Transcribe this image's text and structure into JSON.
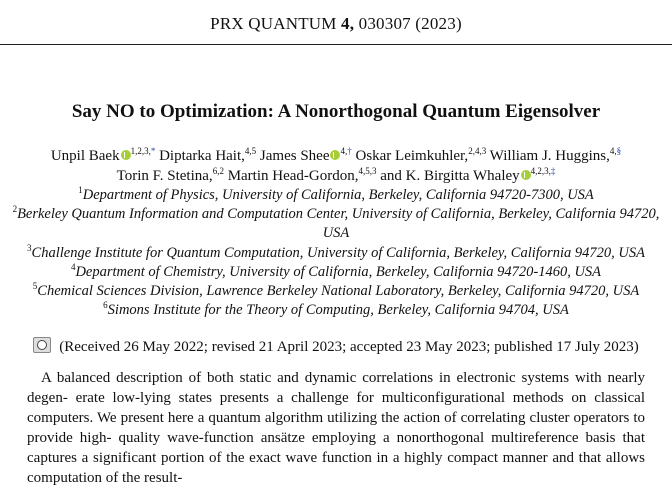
{
  "journal": {
    "name": "PRX QUANTUM",
    "volume": "4,",
    "article_number": "030307",
    "year": "(2023)"
  },
  "title": "Say NO to Optimization: A Nonorthogonal Quantum Eigensolver",
  "authors": [
    {
      "name": "Unpil Baek",
      "sup": "1,2,3,",
      "mark": "*"
    },
    {
      "name": "Diptarka Hait,",
      "sup": "4,5"
    },
    {
      "name": "James Shee",
      "sup": "4,",
      "mark": "†"
    },
    {
      "name": "Oskar Leimkuhler,",
      "sup": "2,4,3"
    },
    {
      "name": "William J. Huggins,",
      "sup": "4,",
      "mark": "§"
    },
    {
      "name": "Torin F. Stetina,",
      "sup": "6,2"
    },
    {
      "name": "Martin Head-Gordon,",
      "sup": "4,5,3"
    },
    {
      "name": "and K. Birgitta Whaley",
      "sup": "4,2,3,",
      "mark": "‡"
    }
  ],
  "affiliations": [
    {
      "num": "1",
      "text": "Department of Physics, University of California, Berkeley, California 94720-7300, USA"
    },
    {
      "num": "2",
      "text": "Berkeley Quantum Information and Computation Center, University of California, Berkeley, California 94720,",
      "cont": "USA"
    },
    {
      "num": "3",
      "text": "Challenge Institute for Quantum Computation, University of California, Berkeley, California 94720, USA"
    },
    {
      "num": "4",
      "text": "Department of Chemistry, University of California, Berkeley, California 94720-1460, USA"
    },
    {
      "num": "5",
      "text": "Chemical Sciences Division, Lawrence Berkeley National Laboratory, Berkeley, California 94720, USA"
    },
    {
      "num": "6",
      "text": "Simons Institute for the Theory of Computing, Berkeley, California 94704, USA"
    }
  ],
  "received": "(Received 26 May 2022; revised 21 April 2023; accepted 23 May 2023; published 17 July 2023)",
  "abstract_lines": [
    "A balanced description of both static and dynamic correlations in electronic systems with nearly degen-",
    "erate low-lying states presents a challenge for multiconfigurational methods on classical computers. We",
    "present here a quantum algorithm utilizing the action of correlating cluster operators to provide high-",
    "quality wave-function ansätze employing a nonorthogonal multireference basis that captures a significant",
    "portion of the exact wave function in a highly compact manner and that allows computation of the result-"
  ],
  "colors": {
    "orcid": "#a6ce39",
    "link": "#1a3fb0"
  }
}
